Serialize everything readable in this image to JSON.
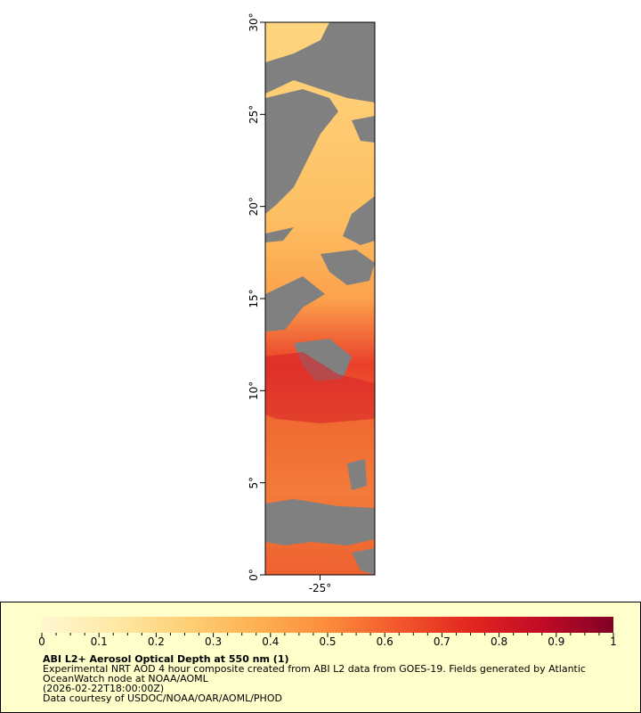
{
  "map": {
    "ylim": [
      0,
      30
    ],
    "yticks": [
      {
        "value": 0,
        "label": "0°"
      },
      {
        "value": 5,
        "label": "5°"
      },
      {
        "value": 10,
        "label": "10°"
      },
      {
        "value": 15,
        "label": "15°"
      },
      {
        "value": 20,
        "label": "20°"
      },
      {
        "value": 25,
        "label": "25°"
      },
      {
        "value": 30,
        "label": "30°"
      }
    ],
    "xlim": [
      -28,
      -22
    ],
    "xticks": [
      {
        "value": -25,
        "label": "-25°"
      }
    ]
  },
  "colorbar": {
    "range": [
      0,
      1
    ],
    "ticks": [
      0,
      0.1,
      0.2,
      0.3,
      0.4,
      0.5,
      0.6,
      0.7,
      0.8,
      0.9,
      1
    ],
    "colors": [
      "#fff7d2",
      "#fee9a6",
      "#fed077",
      "#fdb152",
      "#fc8c3c",
      "#f2572c",
      "#e2261f",
      "#c10b26",
      "#800026"
    ]
  },
  "legend": {
    "title": "ABI L2+ Aerosol Optical Depth at 550 nm (1)",
    "lines": [
      "Experimental NRT AOD 4 hour composite created from ABI L2 data from GOES-19. Fields generated by Atlantic",
      "OceanWatch node at NOAA/AOML",
      "(2026-02-22T18:00:00Z)",
      "Data courtesy of USDOC/NOAA/OAR/AOML/PHOD"
    ]
  }
}
